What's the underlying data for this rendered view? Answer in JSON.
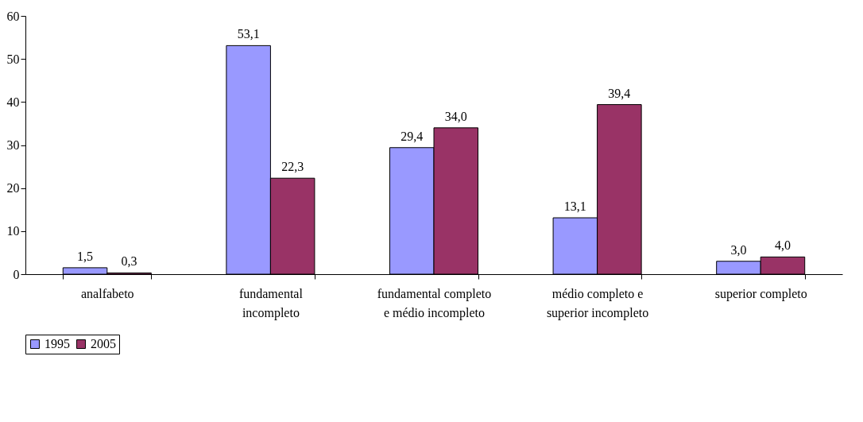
{
  "chart_data": {
    "type": "bar",
    "categories": [
      "analfabeto",
      "fundamental incompleto",
      "fundamental completo e médio incompleto",
      "médio completo e superior incompleto",
      "superior completo"
    ],
    "series": [
      {
        "name": "1995",
        "color": "#9999ff",
        "values": [
          1.5,
          53.1,
          29.4,
          13.1,
          3.0
        ],
        "value_labels": [
          "1,5",
          "53,1",
          "29,4",
          "13,1",
          "3,0"
        ]
      },
      {
        "name": "2005",
        "color": "#993366",
        "values": [
          0.3,
          22.3,
          34.0,
          39.4,
          4.0
        ],
        "value_labels": [
          "0,3",
          "22,3",
          "34,0",
          "39,4",
          "4,0"
        ]
      }
    ],
    "ylim": [
      0,
      60
    ],
    "yticks": [
      0,
      10,
      20,
      30,
      40,
      50,
      60
    ],
    "grid": false,
    "legend": "bottom"
  }
}
